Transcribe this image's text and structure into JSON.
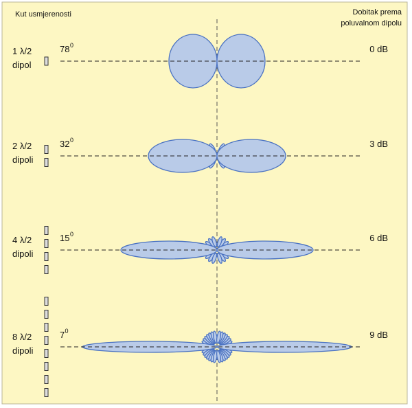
{
  "header": {
    "left_title": "Kut usmjerenosti",
    "right_title": [
      "Dobitak prema",
      "poluvalnom dipolu"
    ]
  },
  "rows": [
    {
      "label": [
        "1 λ/2",
        "dipol"
      ],
      "angle": "78",
      "degree": "0",
      "gain": "0 dB"
    },
    {
      "label": [
        "2 λ/2",
        "dipoli"
      ],
      "angle": "32",
      "degree": "0",
      "gain": "3 dB"
    },
    {
      "label": [
        "4 λ/2",
        "dipoli"
      ],
      "angle": "15",
      "degree": "0",
      "gain": "6 dB"
    },
    {
      "label": [
        "8 λ/2",
        "dipoli"
      ],
      "angle": "7",
      "degree": "0",
      "gain": "9 dB"
    }
  ]
}
